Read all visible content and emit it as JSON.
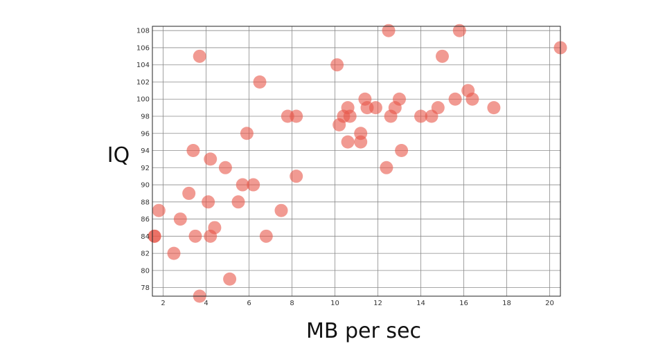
{
  "chart_data": {
    "type": "scatter",
    "title": "",
    "xlabel": "MB per sec",
    "ylabel": "IQ",
    "xlim": [
      1.5,
      20.5
    ],
    "ylim": [
      77,
      108.5
    ],
    "x_ticks": [
      2,
      4,
      6,
      8,
      10,
      12,
      14,
      16,
      18,
      20
    ],
    "y_ticks": [
      78,
      80,
      82,
      84,
      86,
      88,
      90,
      92,
      94,
      96,
      98,
      100,
      102,
      104,
      106,
      108
    ],
    "grid": true,
    "legend": "none",
    "point_color": "#e8564a",
    "points": [
      {
        "x": 1.6,
        "y": 84
      },
      {
        "x": 1.6,
        "y": 84
      },
      {
        "x": 1.8,
        "y": 87
      },
      {
        "x": 2.5,
        "y": 82
      },
      {
        "x": 2.8,
        "y": 86
      },
      {
        "x": 3.2,
        "y": 89
      },
      {
        "x": 3.4,
        "y": 94
      },
      {
        "x": 3.5,
        "y": 84
      },
      {
        "x": 3.7,
        "y": 105
      },
      {
        "x": 3.7,
        "y": 77
      },
      {
        "x": 4.1,
        "y": 88
      },
      {
        "x": 4.2,
        "y": 93
      },
      {
        "x": 4.2,
        "y": 84
      },
      {
        "x": 4.4,
        "y": 85
      },
      {
        "x": 4.9,
        "y": 92
      },
      {
        "x": 5.1,
        "y": 79
      },
      {
        "x": 5.5,
        "y": 88
      },
      {
        "x": 5.7,
        "y": 90
      },
      {
        "x": 5.9,
        "y": 96
      },
      {
        "x": 6.2,
        "y": 90
      },
      {
        "x": 6.5,
        "y": 102
      },
      {
        "x": 6.8,
        "y": 84
      },
      {
        "x": 7.5,
        "y": 87
      },
      {
        "x": 7.8,
        "y": 98
      },
      {
        "x": 8.2,
        "y": 98
      },
      {
        "x": 8.2,
        "y": 91
      },
      {
        "x": 10.1,
        "y": 104
      },
      {
        "x": 10.2,
        "y": 97
      },
      {
        "x": 10.4,
        "y": 98
      },
      {
        "x": 10.6,
        "y": 99
      },
      {
        "x": 10.6,
        "y": 95
      },
      {
        "x": 10.7,
        "y": 98
      },
      {
        "x": 11.2,
        "y": 96
      },
      {
        "x": 11.2,
        "y": 95
      },
      {
        "x": 11.4,
        "y": 100
      },
      {
        "x": 11.5,
        "y": 99
      },
      {
        "x": 11.9,
        "y": 99
      },
      {
        "x": 12.4,
        "y": 92
      },
      {
        "x": 12.5,
        "y": 108
      },
      {
        "x": 12.6,
        "y": 98
      },
      {
        "x": 12.8,
        "y": 99
      },
      {
        "x": 13.0,
        "y": 100
      },
      {
        "x": 13.1,
        "y": 94
      },
      {
        "x": 14.0,
        "y": 98
      },
      {
        "x": 14.5,
        "y": 98
      },
      {
        "x": 14.8,
        "y": 99
      },
      {
        "x": 15.0,
        "y": 105
      },
      {
        "x": 15.6,
        "y": 100
      },
      {
        "x": 15.8,
        "y": 108
      },
      {
        "x": 16.2,
        "y": 101
      },
      {
        "x": 16.4,
        "y": 100
      },
      {
        "x": 17.4,
        "y": 99
      },
      {
        "x": 20.5,
        "y": 106
      }
    ]
  }
}
